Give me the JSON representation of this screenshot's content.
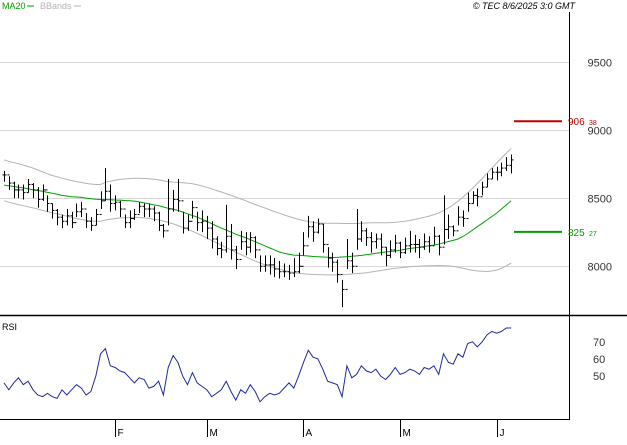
{
  "header": {
    "legend_ma": "MA20",
    "legend_bb": "BBands",
    "copyright": "© TEC 8/6/2025 3:0 GMT"
  },
  "colors": {
    "bars": "#000000",
    "ma": "#00a000",
    "bbands": "#b4b4b4",
    "rsi": "#1e2a9c",
    "resistance": "#c00000",
    "support": "#00a000",
    "grid": "#d8d8d8",
    "axis": "#000000",
    "label": "#333333"
  },
  "chart_data": [
    {
      "type": "ohlc",
      "panel": "price",
      "ylim": [
        7650,
        9850
      ],
      "y_ticks": [
        {
          "value": 9500,
          "label": "9500"
        },
        {
          "value": 9000,
          "label": "9000"
        },
        {
          "value": 8500,
          "label": "8500"
        },
        {
          "value": 8000,
          "label": "8000"
        }
      ],
      "x_labels": [
        {
          "index": 23,
          "label": "F"
        },
        {
          "index": 42,
          "label": "M"
        },
        {
          "index": 62,
          "label": "A"
        },
        {
          "index": 82,
          "label": "M"
        },
        {
          "index": 102,
          "label": "J"
        }
      ],
      "levels": [
        {
          "name": "resistance",
          "value": 9063.8,
          "label": "906",
          "label_small": "38",
          "color": "#c00000"
        },
        {
          "name": "support",
          "value": 8252.7,
          "label": "825",
          "label_small": "27",
          "color": "#00a000"
        }
      ],
      "close": [
        8670,
        8610,
        8560,
        8560,
        8540,
        8600,
        8560,
        8490,
        8560,
        8460,
        8410,
        8360,
        8330,
        8370,
        8320,
        8400,
        8420,
        8330,
        8300,
        8380,
        8480,
        8550,
        8460,
        8470,
        8420,
        8320,
        8350,
        8380,
        8440,
        8420,
        8420,
        8390,
        8300,
        8260,
        8420,
        8490,
        8480,
        8280,
        8330,
        8430,
        8320,
        8330,
        8280,
        8200,
        8130,
        8120,
        8220,
        8120,
        8050,
        8180,
        8140,
        8210,
        8120,
        8000,
        8010,
        8010,
        7980,
        7960,
        7960,
        7950,
        7960,
        8000,
        8150,
        8290,
        8250,
        8310,
        8160,
        8060,
        8030,
        7940,
        7830,
        8040,
        8000,
        8200,
        8260,
        8210,
        8180,
        8200,
        8140,
        8080,
        8120,
        8170,
        8100,
        8150,
        8160,
        8160,
        8140,
        8180,
        8150,
        8220,
        8140,
        8270,
        8290,
        8260,
        8360,
        8350,
        8460,
        8520,
        8510,
        8580,
        8640,
        8690,
        8690,
        8720,
        8740,
        8780
      ],
      "high": [
        8700,
        8660,
        8620,
        8600,
        8600,
        8640,
        8610,
        8580,
        8600,
        8520,
        8460,
        8420,
        8380,
        8420,
        8400,
        8460,
        8470,
        8390,
        8360,
        8420,
        8550,
        8720,
        8600,
        8520,
        8480,
        8380,
        8410,
        8420,
        8470,
        8460,
        8460,
        8440,
        8400,
        8310,
        8640,
        8560,
        8640,
        8400,
        8380,
        8480,
        8400,
        8410,
        8370,
        8330,
        8220,
        8180,
        8450,
        8310,
        8150,
        8260,
        8250,
        8250,
        8220,
        8080,
        8080,
        8080,
        8060,
        8040,
        8020,
        8010,
        8060,
        8100,
        8250,
        8370,
        8330,
        8350,
        8310,
        8140,
        8100,
        8050,
        7900,
        8200,
        8100,
        8420,
        8330,
        8280,
        8250,
        8240,
        8240,
        8140,
        8190,
        8230,
        8180,
        8210,
        8260,
        8230,
        8200,
        8240,
        8220,
        8290,
        8230,
        8520,
        8380,
        8300,
        8440,
        8410,
        8540,
        8550,
        8570,
        8620,
        8680,
        8720,
        8730,
        8760,
        8800,
        8820
      ],
      "low": [
        8620,
        8560,
        8500,
        8500,
        8490,
        8540,
        8500,
        8430,
        8480,
        8400,
        8350,
        8300,
        8280,
        8300,
        8280,
        8360,
        8360,
        8280,
        8260,
        8300,
        8420,
        8480,
        8400,
        8410,
        8360,
        8280,
        8280,
        8340,
        8390,
        8360,
        8360,
        8330,
        8260,
        8210,
        8300,
        8400,
        8400,
        8240,
        8260,
        8350,
        8260,
        8250,
        8200,
        8130,
        8080,
        8060,
        8100,
        8050,
        7980,
        8120,
        8080,
        8100,
        8060,
        7960,
        7960,
        7940,
        7920,
        7910,
        7920,
        7900,
        7920,
        7950,
        8080,
        8210,
        8180,
        8240,
        8100,
        7990,
        7960,
        7880,
        7700,
        7980,
        7950,
        8120,
        8180,
        8150,
        8100,
        8130,
        8080,
        8000,
        8060,
        8100,
        8060,
        8090,
        8100,
        8100,
        8060,
        8120,
        8100,
        8160,
        8080,
        8160,
        8200,
        8220,
        8300,
        8290,
        8400,
        8460,
        8440,
        8520,
        8580,
        8640,
        8630,
        8660,
        8700,
        8680
      ],
      "ma20": [
        8595,
        8590,
        8585,
        8580,
        8575,
        8568,
        8560,
        8555,
        8550,
        8542,
        8535,
        8528,
        8520,
        8515,
        8510,
        8508,
        8505,
        8500,
        8495,
        8492,
        8490,
        8490,
        8488,
        8486,
        8485,
        8482,
        8480,
        8478,
        8472,
        8465,
        8458,
        8450,
        8445,
        8435,
        8425,
        8418,
        8410,
        8398,
        8385,
        8372,
        8360,
        8345,
        8330,
        8312,
        8295,
        8280,
        8265,
        8250,
        8235,
        8222,
        8210,
        8195,
        8180,
        8165,
        8150,
        8135,
        8120,
        8105,
        8095,
        8088,
        8082,
        8080,
        8078,
        8075,
        8072,
        8070,
        8068,
        8066,
        8064,
        8065,
        8068,
        8070,
        8073,
        8076,
        8080,
        8085,
        8090,
        8095,
        8100,
        8105,
        8108,
        8112,
        8118,
        8125,
        8130,
        8135,
        8140,
        8145,
        8150,
        8155,
        8162,
        8172,
        8182,
        8190,
        8200,
        8218,
        8240,
        8265,
        8290,
        8315,
        8340,
        8365,
        8390,
        8420,
        8450,
        8480
      ],
      "bb_upper": [
        8780,
        8770,
        8760,
        8752,
        8742,
        8732,
        8720,
        8706,
        8692,
        8678,
        8666,
        8656,
        8646,
        8637,
        8628,
        8621,
        8614,
        8608,
        8603,
        8600,
        8600,
        8615,
        8624,
        8631,
        8637,
        8641,
        8643,
        8645,
        8645,
        8644,
        8642,
        8639,
        8634,
        8627,
        8621,
        8617,
        8615,
        8613,
        8610,
        8605,
        8598,
        8589,
        8579,
        8568,
        8556,
        8545,
        8533,
        8520,
        8507,
        8494,
        8481,
        8467,
        8453,
        8440,
        8427,
        8414,
        8401,
        8389,
        8377,
        8365,
        8354,
        8344,
        8335,
        8328,
        8322,
        8318,
        8316,
        8315,
        8315,
        8315,
        8314,
        8314,
        8314,
        8314,
        8315,
        8317,
        8319,
        8319,
        8319,
        8319,
        8320,
        8322,
        8326,
        8330,
        8336,
        8343,
        8351,
        8359,
        8368,
        8379,
        8391,
        8408,
        8428,
        8451,
        8477,
        8506,
        8538,
        8571,
        8607,
        8644,
        8682,
        8720,
        8757,
        8794,
        8830,
        8865
      ],
      "bb_lower": [
        8480,
        8470,
        8460,
        8452,
        8444,
        8436,
        8428,
        8419,
        8410,
        8401,
        8392,
        8384,
        8376,
        8367,
        8358,
        8350,
        8343,
        8337,
        8332,
        8330,
        8330,
        8339,
        8345,
        8350,
        8354,
        8356,
        8358,
        8359,
        8358,
        8355,
        8351,
        8346,
        8340,
        8332,
        8322,
        8311,
        8299,
        8286,
        8272,
        8257,
        8240,
        8224,
        8207,
        8190,
        8173,
        8155,
        8137,
        8120,
        8103,
        8086,
        8070,
        8054,
        8038,
        8024,
        8011,
        7999,
        7988,
        7978,
        7969,
        7961,
        7954,
        7949,
        7945,
        7942,
        7940,
        7939,
        7938,
        7937,
        7937,
        7937,
        7938,
        7940,
        7943,
        7946,
        7949,
        7953,
        7958,
        7963,
        7968,
        7974,
        7980,
        7985,
        7989,
        7993,
        7996,
        7999,
        8001,
        8003,
        8004,
        8005,
        8006,
        8005,
        8003,
        7999,
        7993,
        7985,
        7977,
        7970,
        7966,
        7963,
        7962,
        7965,
        7972,
        7985,
        8003,
        8025
      ]
    },
    {
      "type": "line",
      "panel": "rsi",
      "label": "RSI",
      "ylim": [
        25,
        85
      ],
      "y_ticks": [
        {
          "value": 70,
          "label": "70"
        },
        {
          "value": 60,
          "label": "60"
        },
        {
          "value": 50,
          "label": "50"
        }
      ],
      "values": [
        46,
        42,
        46,
        49,
        45,
        47,
        42,
        39,
        38,
        40,
        38,
        37,
        42,
        39,
        42,
        45,
        43,
        39,
        41,
        50,
        63,
        66,
        56,
        55,
        53,
        52,
        49,
        46,
        49,
        48,
        43,
        44,
        47,
        39,
        55,
        62,
        58,
        50,
        45,
        52,
        46,
        44,
        42,
        38,
        40,
        42,
        47,
        41,
        36,
        42,
        40,
        45,
        41,
        35,
        38,
        40,
        39,
        40,
        43,
        46,
        43,
        50,
        58,
        65,
        61,
        60,
        54,
        47,
        46,
        45,
        38,
        56,
        49,
        51,
        56,
        53,
        52,
        54,
        50,
        48,
        51,
        55,
        51,
        52,
        54,
        53,
        51,
        55,
        54,
        56,
        51,
        63,
        58,
        57,
        63,
        61,
        69,
        70,
        67,
        70,
        74,
        76,
        75,
        76,
        78,
        78
      ]
    }
  ]
}
